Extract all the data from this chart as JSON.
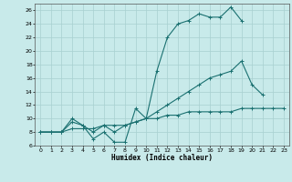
{
  "xlabel": "Humidex (Indice chaleur)",
  "bg_color": "#c8eaea",
  "line_color": "#1a7070",
  "grid_color": "#a8d0d0",
  "xlim": [
    -0.5,
    23.5
  ],
  "ylim": [
    6,
    27
  ],
  "yticks": [
    6,
    8,
    10,
    12,
    14,
    16,
    18,
    20,
    22,
    24,
    26
  ],
  "xticks": [
    0,
    1,
    2,
    3,
    4,
    5,
    6,
    7,
    8,
    9,
    10,
    11,
    12,
    13,
    14,
    15,
    16,
    17,
    18,
    19,
    20,
    21,
    22,
    23
  ],
  "series": [
    {
      "x": [
        0,
        1,
        2,
        3,
        4,
        5,
        6,
        7,
        8,
        9,
        10,
        11,
        12,
        13,
        14,
        15,
        16,
        17,
        18,
        19
      ],
      "y": [
        8,
        8,
        8,
        9.5,
        9,
        7,
        8,
        6.5,
        6.5,
        11.5,
        10,
        17,
        22,
        24,
        24.5,
        25.5,
        25.0,
        25.0,
        26.5,
        24.5
      ]
    },
    {
      "x": [
        0,
        1,
        2,
        3,
        4,
        5,
        6,
        7,
        8,
        9,
        10,
        11,
        12,
        13,
        14,
        15,
        16,
        17,
        18,
        19,
        20,
        21
      ],
      "y": [
        8,
        8,
        8,
        10,
        9,
        8,
        9,
        8,
        9,
        9.5,
        10,
        11,
        12,
        13,
        14,
        15,
        16,
        16.5,
        17,
        18.5,
        15,
        13.5
      ]
    },
    {
      "x": [
        0,
        1,
        2,
        3,
        4,
        5,
        6,
        7,
        8,
        9,
        10,
        11,
        12,
        13,
        14,
        15,
        16,
        17,
        18,
        19,
        20,
        21,
        22,
        23
      ],
      "y": [
        8,
        8,
        8,
        8.5,
        8.5,
        8.5,
        9,
        9,
        9,
        9.5,
        10,
        10,
        10.5,
        10.5,
        11,
        11,
        11,
        11,
        11,
        11.5,
        11.5,
        11.5,
        11.5,
        11.5
      ]
    }
  ]
}
